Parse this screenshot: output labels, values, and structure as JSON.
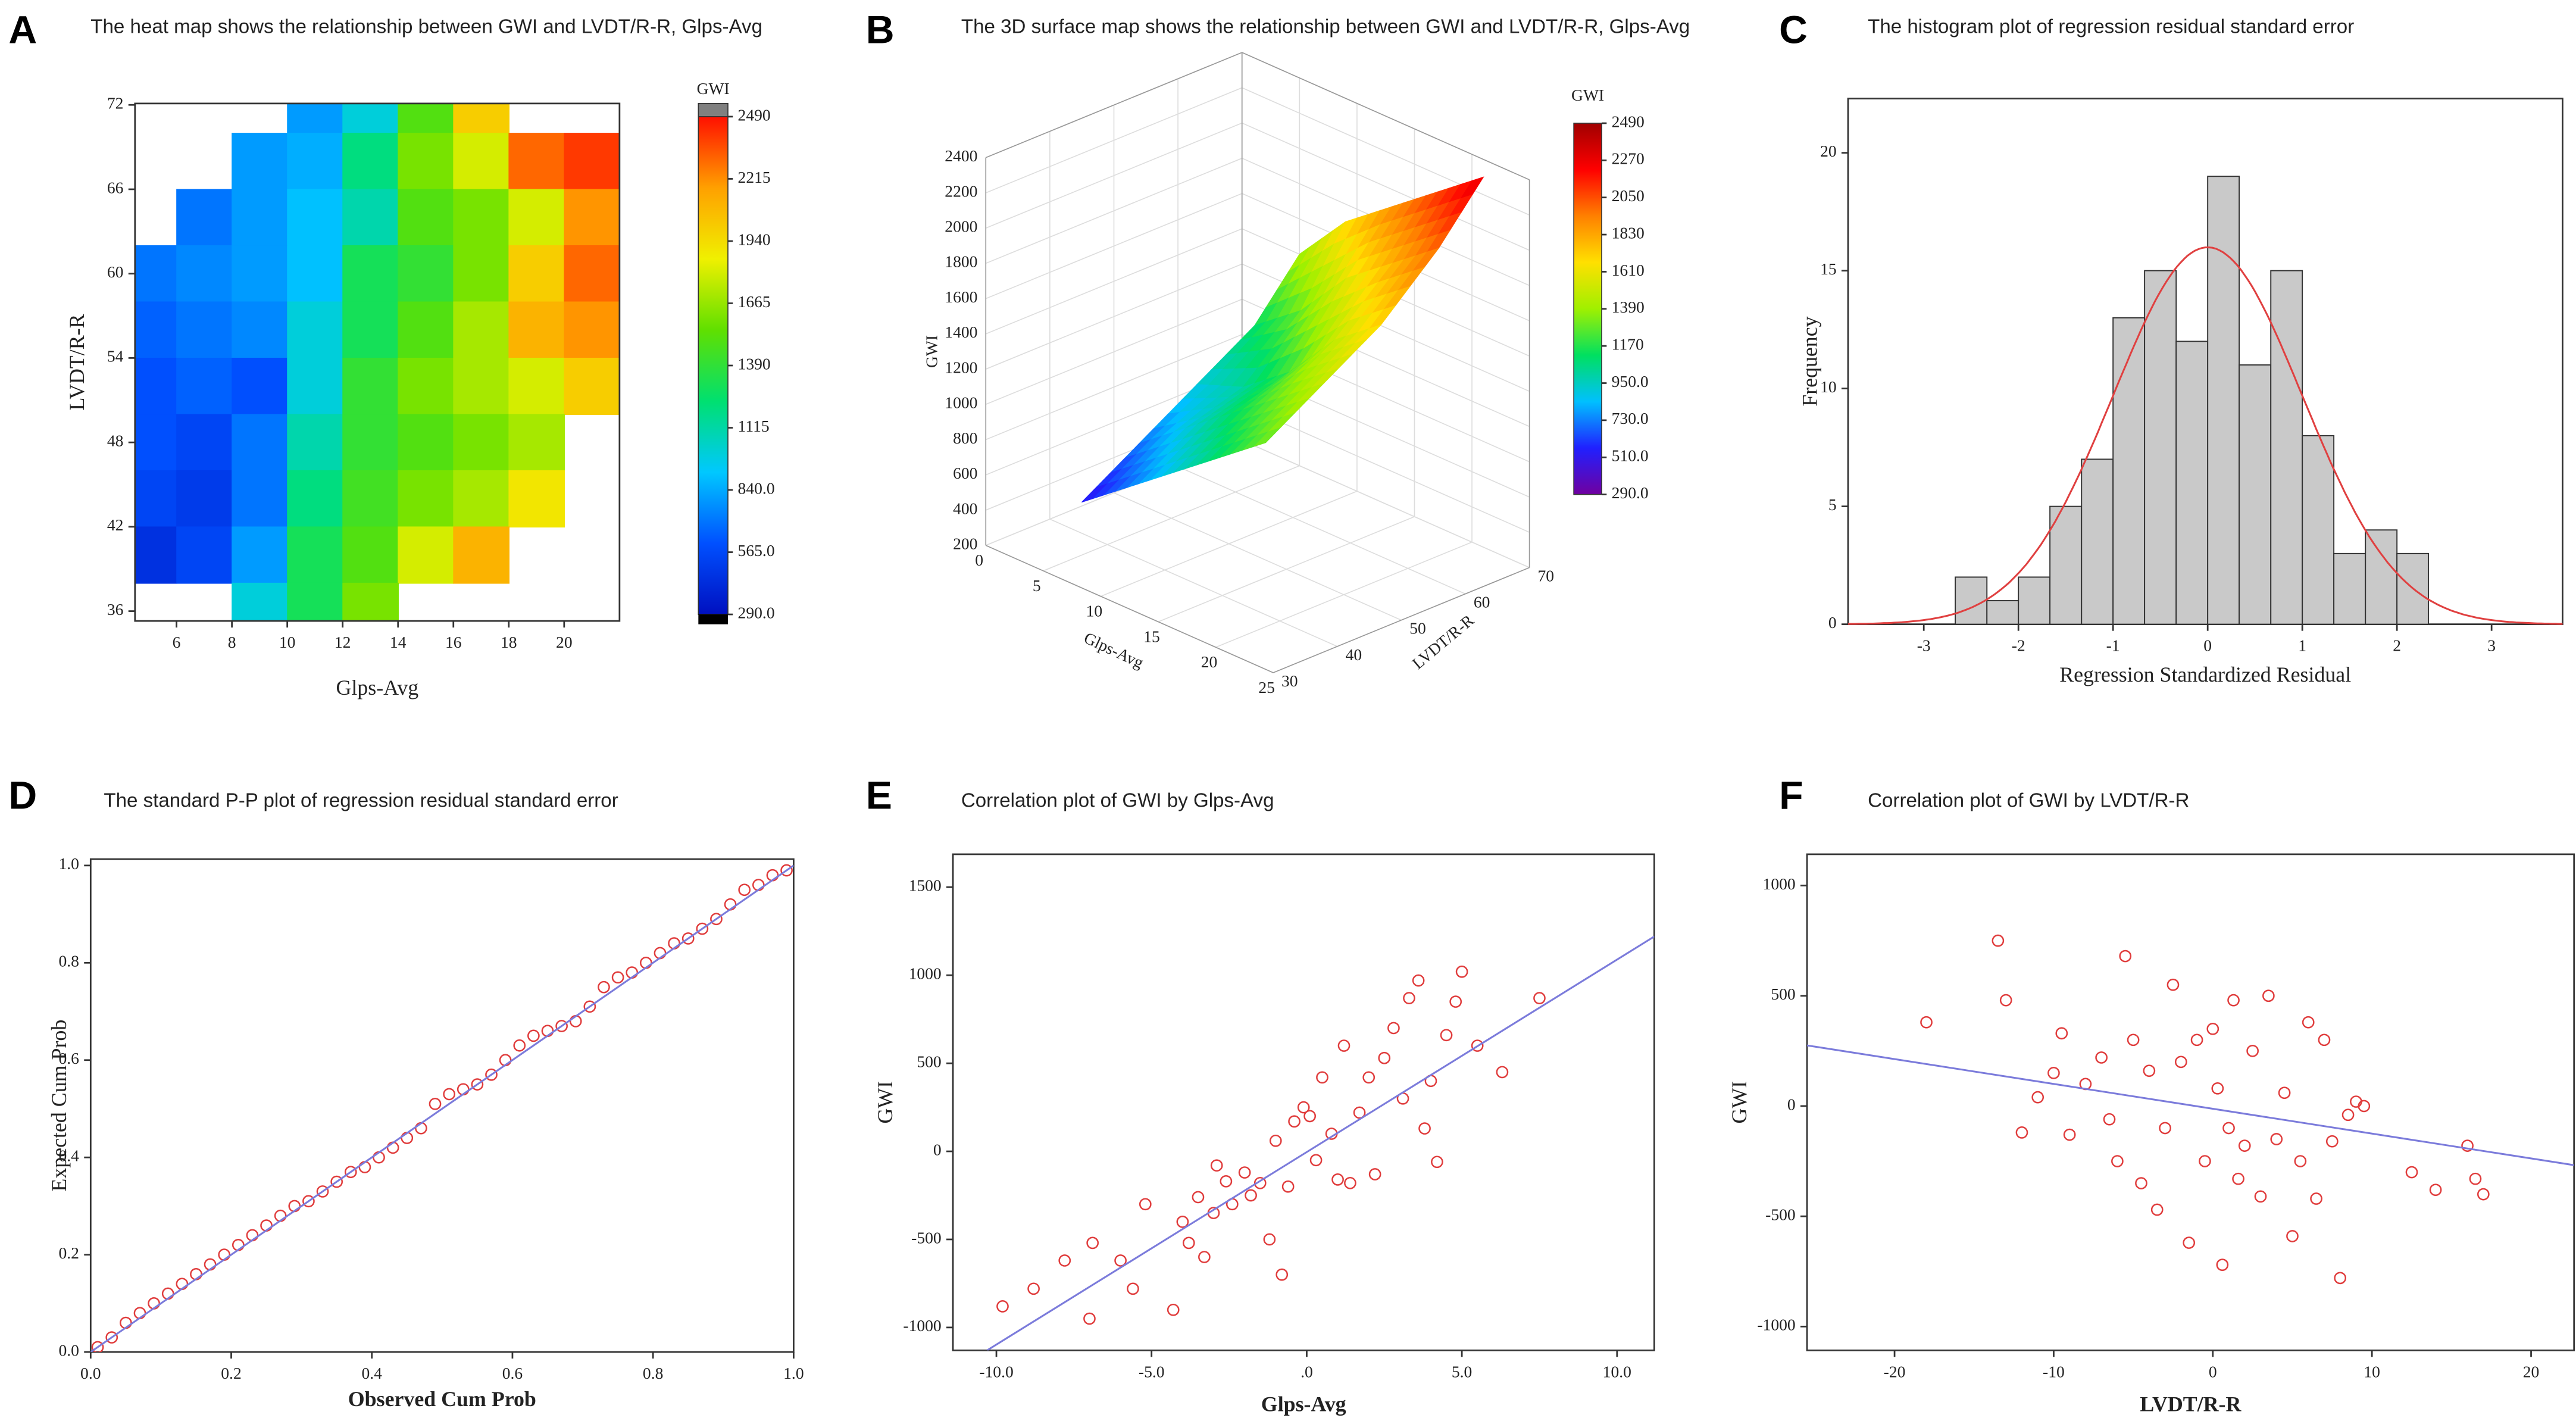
{
  "chart_data": [
    {
      "type": "heatmap",
      "label": "A",
      "title": "The heat map shows the relationship between GWI and LVDT/R-R, Glps-Avg",
      "x_label": "Glps-Avg",
      "y_label": "LVDT/R-R",
      "colorbar_label": "GWI",
      "x": [
        5,
        7,
        9,
        11,
        13,
        15,
        17,
        19,
        21
      ],
      "y": [
        72,
        68,
        64,
        60,
        56,
        52,
        48,
        44,
        40,
        36
      ],
      "z": [
        [
          null,
          null,
          null,
          800,
          1000,
          1500,
          2000,
          null,
          null
        ],
        [
          null,
          null,
          800,
          850,
          1200,
          1600,
          1800,
          2300,
          2400
        ],
        [
          null,
          700,
          800,
          900,
          1100,
          1500,
          1600,
          1800,
          2200
        ],
        [
          700,
          750,
          800,
          900,
          1300,
          1400,
          1600,
          2000,
          2300
        ],
        [
          650,
          700,
          750,
          1000,
          1300,
          1500,
          1700,
          2100,
          2200
        ],
        [
          600,
          650,
          600,
          1000,
          1400,
          1600,
          1700,
          1800,
          2000
        ],
        [
          600,
          550,
          700,
          1100,
          1400,
          1500,
          1600,
          1700,
          null
        ],
        [
          550,
          500,
          700,
          1200,
          1450,
          1600,
          1700,
          1900,
          null
        ],
        [
          450,
          550,
          800,
          1300,
          1500,
          1800,
          2100,
          null,
          null
        ],
        [
          null,
          null,
          1000,
          1300,
          1600,
          null,
          null,
          null,
          null
        ]
      ],
      "xlim": [
        4.5,
        22
      ],
      "ylim": [
        35.3,
        72.1
      ],
      "xticks": [
        6,
        8,
        10,
        12,
        14,
        16,
        18,
        20
      ],
      "yticks": [
        36,
        42,
        48,
        54,
        60,
        66,
        72
      ],
      "clim": [
        290,
        2490
      ],
      "colors": [
        "#0010c0",
        "#0050ff",
        "#00c8ff",
        "#00e070",
        "#60e000",
        "#f0f000",
        "#ffa000",
        "#ff1000"
      ],
      "cticks": [
        {
          "value": 290,
          "label": "290.0"
        },
        {
          "value": 565,
          "label": "565.0"
        },
        {
          "value": 840,
          "label": "840.0"
        },
        1115,
        1390,
        1665,
        1940,
        2215,
        2490
      ]
    },
    {
      "type": "surface",
      "label": "B",
      "title": "The 3D surface map shows the relationship between GWI and LVDT/R-R, Glps-Avg",
      "x_label": "Glps-Avg",
      "y_label": "LVDT/R-R",
      "z_label": "GWI",
      "colorbar_label": "GWI",
      "x": [
        5,
        9,
        13,
        17,
        21
      ],
      "y": [
        36,
        45,
        54,
        63,
        70
      ],
      "z": [
        [
          500,
          700,
          900,
          1100,
          1300
        ],
        [
          700,
          900,
          1100,
          1300,
          1500
        ],
        [
          900,
          1000,
          1200,
          1500,
          1700
        ],
        [
          1100,
          1300,
          1600,
          1800,
          2000
        ],
        [
          1400,
          1700,
          1900,
          2100,
          2300
        ]
      ],
      "xlim": [
        0,
        25
      ],
      "ylim": [
        30,
        70
      ],
      "zlim": [
        200,
        2400
      ],
      "xticks": [
        0,
        5,
        10,
        15,
        20,
        25
      ],
      "yticks": [
        30,
        40,
        50,
        60,
        70
      ],
      "zticks": [
        200,
        400,
        600,
        800,
        1000,
        1200,
        1400,
        1600,
        1800,
        2000,
        2200,
        2400
      ],
      "clim": [
        290,
        2490
      ],
      "colors": [
        "#7000a0",
        "#2020ff",
        "#00c0ff",
        "#00e060",
        "#a0f000",
        "#ffe000",
        "#ff8000",
        "#ff0000",
        "#a00000"
      ],
      "cticks": [
        {
          "value": 290,
          "label": "290.0"
        },
        {
          "value": 510,
          "label": "510.0"
        },
        {
          "value": 730,
          "label": "730.0"
        },
        {
          "value": 950,
          "label": "950.0"
        },
        1170,
        1390,
        1610,
        1830,
        2050,
        2270,
        2490
      ]
    },
    {
      "type": "histogram",
      "label": "C",
      "title": "The histogram plot of regression residual standard error",
      "x_label": "Regression Standardized Residual",
      "y_label": "Frequency",
      "bins": [
        -2.667,
        -2.333,
        -2,
        -1.667,
        -1.333,
        -1,
        -0.667,
        -0.333,
        0,
        0.333,
        0.667,
        1,
        1.333,
        1.667,
        2,
        2.333
      ],
      "counts": [
        2,
        1,
        2,
        5,
        7,
        13,
        15,
        12,
        19,
        11,
        15,
        8,
        3,
        4,
        3
      ],
      "curve": {
        "mean": 0,
        "sd": 1
      },
      "xlim": [
        -3.8,
        3.75
      ],
      "ylim": [
        0,
        22.3
      ],
      "xticks": [
        -3,
        -2,
        -1,
        0,
        1,
        2,
        3
      ],
      "yticks": [
        0,
        5,
        10,
        15,
        20
      ]
    },
    {
      "type": "scatter",
      "label": "D",
      "title": "The standard P-P plot of regression residual standard error",
      "x_label": "Observed Cum Prob",
      "y_label": "Expected Cum Prob",
      "x": [
        0.01,
        0.03,
        0.05,
        0.07,
        0.09,
        0.11,
        0.13,
        0.15,
        0.17,
        0.19,
        0.21,
        0.23,
        0.25,
        0.27,
        0.29,
        0.31,
        0.33,
        0.35,
        0.37,
        0.39,
        0.41,
        0.43,
        0.45,
        0.47,
        0.49,
        0.51,
        0.53,
        0.55,
        0.57,
        0.59,
        0.61,
        0.63,
        0.65,
        0.67,
        0.69,
        0.71,
        0.73,
        0.75,
        0.77,
        0.79,
        0.81,
        0.83,
        0.85,
        0.87,
        0.89,
        0.91,
        0.93,
        0.95,
        0.97,
        0.99
      ],
      "y": [
        0.01,
        0.03,
        0.06,
        0.08,
        0.1,
        0.12,
        0.14,
        0.16,
        0.18,
        0.2,
        0.22,
        0.24,
        0.26,
        0.28,
        0.3,
        0.31,
        0.33,
        0.35,
        0.37,
        0.38,
        0.4,
        0.42,
        0.44,
        0.46,
        0.51,
        0.53,
        0.54,
        0.55,
        0.57,
        0.6,
        0.63,
        0.65,
        0.66,
        0.67,
        0.68,
        0.71,
        0.75,
        0.77,
        0.78,
        0.8,
        0.82,
        0.84,
        0.85,
        0.87,
        0.89,
        0.92,
        0.95,
        0.96,
        0.98,
        0.99
      ],
      "line": {
        "x": [
          0,
          1
        ],
        "y": [
          0,
          1
        ]
      },
      "xlim": [
        0,
        1
      ],
      "ylim": [
        0,
        1.013
      ],
      "xticks": [
        {
          "value": 0,
          "label": "0.0"
        },
        0.2,
        0.4,
        0.6,
        0.8,
        {
          "value": 1,
          "label": "1.0"
        }
      ],
      "yticks": [
        {
          "value": 0,
          "label": "0.0"
        },
        0.2,
        0.4,
        0.6,
        0.8,
        {
          "value": 1,
          "label": "1.0"
        }
      ],
      "color": "#e03c3c",
      "line_color": "#7b7bdb"
    },
    {
      "type": "scatter",
      "label": "E",
      "title": "Correlation plot of GWI by Glps-Avg",
      "x_label": "Glps-Avg",
      "y_label": "GWI",
      "x": [
        -9.8,
        -8.8,
        -7.8,
        -7.0,
        -6.9,
        -6.0,
        -5.6,
        -5.2,
        -4.3,
        -4.0,
        -3.8,
        -3.5,
        -3.3,
        -3.0,
        -2.9,
        -2.6,
        -2.4,
        -2.0,
        -1.8,
        -1.5,
        -1.2,
        -1.0,
        -0.8,
        -0.6,
        -0.4,
        -0.1,
        0.1,
        0.3,
        0.5,
        0.8,
        1.0,
        1.2,
        1.4,
        1.7,
        2.0,
        2.2,
        2.5,
        2.8,
        3.1,
        3.3,
        3.6,
        3.8,
        4.0,
        4.2,
        4.5,
        4.8,
        5.0,
        5.5,
        6.3,
        7.5
      ],
      "y": [
        -880,
        -780,
        -620,
        -950,
        -520,
        -620,
        -780,
        -300,
        -900,
        -400,
        -520,
        -260,
        -600,
        -350,
        -80,
        -170,
        -300,
        -120,
        -250,
        -180,
        -500,
        60,
        -700,
        -200,
        170,
        250,
        200,
        -50,
        420,
        100,
        -160,
        600,
        -180,
        220,
        420,
        -130,
        530,
        700,
        300,
        870,
        970,
        130,
        400,
        -60,
        660,
        850,
        1020,
        600,
        450,
        870
      ],
      "line": {
        "x": [
          -10.3,
          11.2
        ],
        "y": [
          -1130,
          1220
        ]
      },
      "xlim": [
        -11.4,
        11.2
      ],
      "ylim": [
        -1130,
        1687
      ],
      "xticks": [
        {
          "value": -10,
          "label": "-10.0"
        },
        {
          "value": -5,
          "label": "-5.0"
        },
        {
          "value": 0,
          "label": ".0"
        },
        {
          "value": 5,
          "label": "5.0"
        },
        {
          "value": 10,
          "label": "10.0"
        }
      ],
      "yticks": [
        -1000,
        -500,
        0,
        500,
        1000,
        1500
      ],
      "color": "#e03c3c",
      "line_color": "#7b7bdb"
    },
    {
      "type": "scatter",
      "label": "F",
      "title": "Correlation plot of GWI by LVDT/R-R",
      "x_label": "LVDT/R-R",
      "y_label": "GWI",
      "x": [
        -18,
        -13.5,
        -13,
        -12,
        -11,
        -10,
        -9.5,
        -9,
        -8,
        -7,
        -6.5,
        -6,
        -5.5,
        -5,
        -4.5,
        -4,
        -3.5,
        -3,
        -2.5,
        -2,
        -1.5,
        -1,
        -0.5,
        0,
        0.3,
        0.6,
        1,
        1.3,
        1.6,
        2,
        2.5,
        3,
        3.5,
        4,
        4.5,
        5,
        5.5,
        6,
        6.5,
        7,
        7.5,
        8,
        8.5,
        9,
        9.5,
        12.5,
        14,
        16,
        16.5,
        17
      ],
      "y": [
        380,
        750,
        480,
        -120,
        40,
        150,
        330,
        -130,
        100,
        220,
        -60,
        -250,
        680,
        300,
        -350,
        160,
        -470,
        -100,
        550,
        200,
        -620,
        300,
        -250,
        350,
        80,
        -720,
        -100,
        480,
        -330,
        -180,
        250,
        -410,
        500,
        -150,
        60,
        -590,
        -250,
        380,
        -420,
        300,
        -160,
        -780,
        -40,
        20,
        0,
        -300,
        -380,
        -180,
        -330,
        -400
      ],
      "line": {
        "x": [
          -25.5,
          22.7
        ],
        "y": [
          275,
          -268
        ]
      },
      "xlim": [
        -25.5,
        22.7
      ],
      "ylim": [
        -1108,
        1142
      ],
      "xticks": [
        -20,
        -10,
        0,
        10,
        20
      ],
      "yticks": [
        -1000,
        -500,
        0,
        500,
        1000
      ],
      "color": "#e03c3c",
      "line_color": "#7b7bdb"
    }
  ]
}
